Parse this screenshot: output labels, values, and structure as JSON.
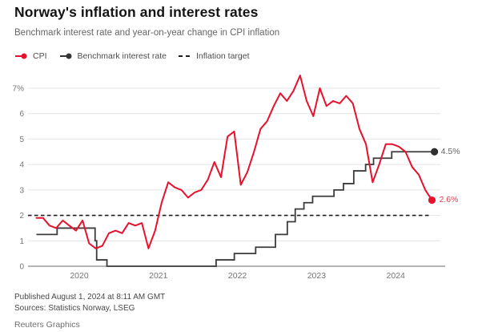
{
  "header": {
    "title": "Norway's inflation and interest rates",
    "subtitle": "Benchmark interest rate and year-on-year change in CPI inflation"
  },
  "legend": [
    {
      "label": "CPI",
      "marker": "line-dot",
      "color": "#e8112d"
    },
    {
      "label": "Benchmark interest rate",
      "marker": "line-dot",
      "color": "#333333"
    },
    {
      "label": "Inflation target",
      "marker": "dashes",
      "color": "#1f1f1f"
    }
  ],
  "chart_data": {
    "type": "line",
    "title": "Norway's inflation and interest rates",
    "subtitle": "Benchmark interest rate and year-on-year change in CPI inflation",
    "xlabel": "",
    "ylabel": "",
    "y_unit": "%",
    "ylim": [
      0,
      7.7
    ],
    "x_domain": [
      2019.42,
      2024.6
    ],
    "grid": "horizontal",
    "legend_position": "top",
    "y_tick_values": [
      0,
      1,
      2,
      3,
      4,
      5,
      6,
      7
    ],
    "y_tick_labels": [
      "0",
      "1",
      "2",
      "3",
      "4",
      "5",
      "6",
      "7%"
    ],
    "x_tick_values": [
      2020,
      2021,
      2022,
      2023,
      2024
    ],
    "x_tick_labels": [
      "2020",
      "2021",
      "2022",
      "2023",
      "2024"
    ],
    "series": [
      {
        "name": "CPI",
        "kind": "line",
        "color": "#e8112d",
        "label_color": "#ef3e51",
        "end_label": "2.6%",
        "x_start": 2019.4583,
        "x_step": 0.0833333,
        "values": [
          1.9,
          1.9,
          1.6,
          1.5,
          1.8,
          1.6,
          1.4,
          1.8,
          0.9,
          0.7,
          0.8,
          1.3,
          1.4,
          1.3,
          1.7,
          1.6,
          1.7,
          0.7,
          1.4,
          2.5,
          3.3,
          3.1,
          3.0,
          2.7,
          2.9,
          3.0,
          3.4,
          4.1,
          3.5,
          5.1,
          5.3,
          3.2,
          3.7,
          4.5,
          5.4,
          5.7,
          6.3,
          6.8,
          6.5,
          6.9,
          7.5,
          6.5,
          5.9,
          7.0,
          6.3,
          6.5,
          6.4,
          6.7,
          6.4,
          5.4,
          4.8,
          3.3,
          4.0,
          4.8,
          4.8,
          4.7,
          4.5,
          3.9,
          3.6,
          3.0,
          2.6
        ]
      },
      {
        "name": "Benchmark interest rate",
        "kind": "step",
        "color": "#3c3c3c",
        "dot_color": "#2e2e2e",
        "label_color": "#666666",
        "end_label": "4.5%",
        "x_end": 2024.49,
        "points": [
          [
            2019.4583,
            1.25
          ],
          [
            2019.72,
            1.5
          ],
          [
            2020.2,
            1.0
          ],
          [
            2020.22,
            0.25
          ],
          [
            2020.35,
            0.0
          ],
          [
            2021.73,
            0.25
          ],
          [
            2021.96,
            0.5
          ],
          [
            2022.23,
            0.75
          ],
          [
            2022.48,
            1.25
          ],
          [
            2022.63,
            1.75
          ],
          [
            2022.73,
            2.25
          ],
          [
            2022.84,
            2.5
          ],
          [
            2022.95,
            2.75
          ],
          [
            2023.22,
            3.0
          ],
          [
            2023.34,
            3.25
          ],
          [
            2023.47,
            3.75
          ],
          [
            2023.62,
            4.0
          ],
          [
            2023.72,
            4.25
          ],
          [
            2023.95,
            4.5
          ]
        ]
      },
      {
        "name": "Inflation target",
        "kind": "target",
        "style": "dashed",
        "color": "#1f1f1f",
        "value": 2.0
      }
    ]
  },
  "footer": {
    "published": "Published August 1, 2024 at 8:11 AM GMT",
    "sources": "Sources: Statistics Norway, LSEG",
    "credit": "Reuters Graphics"
  }
}
